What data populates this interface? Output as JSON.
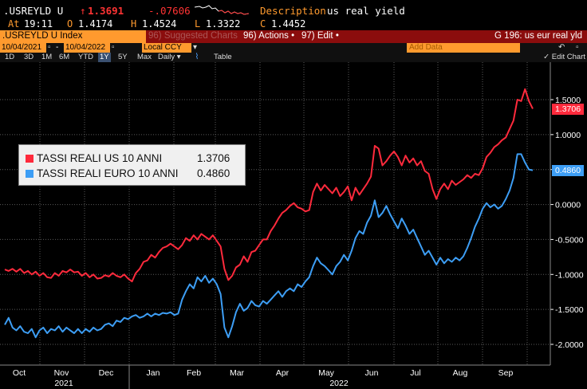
{
  "quote": {
    "ticker": ".USREYLD U",
    "arrow": "↑",
    "last": "1.3691",
    "change": "-.07606",
    "desc_label": "Description",
    "desc_value": "us real yield",
    "at_label": "At",
    "at_value": "19:11",
    "open_label": "O",
    "open_value": "1.4174",
    "high_label": "H",
    "high_value": "1.4524",
    "low_label": "L",
    "low_value": "1.3322",
    "close_label": "C",
    "close_value": "1.4452"
  },
  "titlebar": {
    "security": ".USREYLD U Index",
    "suggested": "96) Suggested Charts",
    "actions": "96) Actions •",
    "edit": "97) Edit •",
    "page_title": "G 196: us eur real yld"
  },
  "daterow": {
    "start_date": "10/04/2021",
    "end_date": "10/04/2022",
    "currency": "Local CCY",
    "add_data": "Add Data"
  },
  "range": {
    "buttons": [
      "1D",
      "3D",
      "1M",
      "6M",
      "YTD",
      "1Y",
      "5Y",
      "Max"
    ],
    "active": "1Y",
    "period": "Daily ▾",
    "table": "Table",
    "edit_chart": "✓ Edit Chart"
  },
  "colors": {
    "us_series": "#ff2a3c",
    "euro_series": "#3d9ef5",
    "title_bar": "#8b0d0d",
    "orange_box": "#ff9a2e"
  },
  "chart_data": {
    "type": "line",
    "x_months": [
      "Oct",
      "Nov",
      "Dec",
      "Jan",
      "Feb",
      "Mar",
      "Apr",
      "May",
      "Jun",
      "Jul",
      "Aug",
      "Sep"
    ],
    "x_years": [
      "2021",
      "2022"
    ],
    "y_ticks": [
      "1.5000",
      "1.0000",
      "0.5000",
      "0.0000",
      "-0.5000",
      "-1.0000",
      "-1.5000",
      "-2.0000"
    ],
    "ylim": [
      -2.2,
      1.95
    ],
    "grid": true,
    "legend_position": "top-left",
    "series": [
      {
        "name": "TASSI REALI US 10 ANNI",
        "last_value": "1.3706",
        "color": "#ff2a3c",
        "values": [
          [
            0,
            -0.93
          ],
          [
            2,
            -0.95
          ],
          [
            4,
            -0.92
          ],
          [
            6,
            -0.96
          ],
          [
            8,
            -0.92
          ],
          [
            10,
            -0.98
          ],
          [
            12,
            -0.95
          ],
          [
            14,
            -1.0
          ],
          [
            16,
            -0.96
          ],
          [
            18,
            -1.02
          ],
          [
            20,
            -0.98
          ],
          [
            22,
            -1.04
          ],
          [
            24,
            -1.05
          ],
          [
            26,
            -0.98
          ],
          [
            28,
            -1.02
          ],
          [
            30,
            -0.95
          ],
          [
            32,
            -0.97
          ],
          [
            34,
            -0.93
          ],
          [
            36,
            -0.97
          ],
          [
            38,
            -0.96
          ],
          [
            40,
            -1.02
          ],
          [
            42,
            -0.98
          ],
          [
            44,
            -1.04
          ],
          [
            46,
            -1.0
          ],
          [
            48,
            -1.06
          ],
          [
            50,
            -1.05
          ],
          [
            52,
            -1.01
          ],
          [
            54,
            -1.03
          ],
          [
            56,
            -0.98
          ],
          [
            58,
            -1.02
          ],
          [
            60,
            -1.04
          ],
          [
            62,
            -1.0
          ],
          [
            64,
            -1.06
          ],
          [
            66,
            -1.1
          ],
          [
            68,
            -0.98
          ],
          [
            70,
            -0.92
          ],
          [
            72,
            -0.82
          ],
          [
            74,
            -0.8
          ],
          [
            76,
            -0.72
          ],
          [
            78,
            -0.76
          ],
          [
            80,
            -0.68
          ],
          [
            82,
            -0.62
          ],
          [
            84,
            -0.6
          ],
          [
            86,
            -0.56
          ],
          [
            88,
            -0.6
          ],
          [
            90,
            -0.64
          ],
          [
            92,
            -0.58
          ],
          [
            94,
            -0.48
          ],
          [
            96,
            -0.52
          ],
          [
            98,
            -0.44
          ],
          [
            100,
            -0.5
          ],
          [
            102,
            -0.42
          ],
          [
            104,
            -0.46
          ],
          [
            106,
            -0.5
          ],
          [
            108,
            -0.44
          ],
          [
            110,
            -0.52
          ],
          [
            112,
            -0.6
          ],
          [
            114,
            -0.92
          ],
          [
            116,
            -1.08
          ],
          [
            118,
            -1.02
          ],
          [
            120,
            -0.9
          ],
          [
            122,
            -0.86
          ],
          [
            124,
            -0.74
          ],
          [
            126,
            -0.82
          ],
          [
            128,
            -0.68
          ],
          [
            130,
            -0.66
          ],
          [
            132,
            -0.58
          ],
          [
            134,
            -0.5
          ],
          [
            136,
            -0.5
          ],
          [
            138,
            -0.38
          ],
          [
            140,
            -0.3
          ],
          [
            142,
            -0.2
          ],
          [
            144,
            -0.12
          ],
          [
            146,
            -0.08
          ],
          [
            148,
            -0.02
          ],
          [
            150,
            0.02
          ],
          [
            152,
            -0.04
          ],
          [
            154,
            -0.06
          ],
          [
            156,
            -0.1
          ],
          [
            158,
            -0.08
          ],
          [
            160,
            0.18
          ],
          [
            162,
            0.3
          ],
          [
            164,
            0.2
          ],
          [
            166,
            0.28
          ],
          [
            168,
            0.22
          ],
          [
            170,
            0.16
          ],
          [
            172,
            0.24
          ],
          [
            174,
            0.12
          ],
          [
            176,
            0.18
          ],
          [
            178,
            0.26
          ],
          [
            180,
            0.06
          ],
          [
            182,
            0.24
          ],
          [
            184,
            0.14
          ],
          [
            186,
            0.22
          ],
          [
            188,
            0.3
          ],
          [
            190,
            0.4
          ],
          [
            192,
            0.84
          ],
          [
            194,
            0.8
          ],
          [
            196,
            0.56
          ],
          [
            198,
            0.62
          ],
          [
            200,
            0.7
          ],
          [
            202,
            0.76
          ],
          [
            204,
            0.68
          ],
          [
            206,
            0.56
          ],
          [
            208,
            0.7
          ],
          [
            210,
            0.6
          ],
          [
            212,
            0.66
          ],
          [
            214,
            0.56
          ],
          [
            216,
            0.62
          ],
          [
            218,
            0.48
          ],
          [
            220,
            0.44
          ],
          [
            222,
            0.22
          ],
          [
            224,
            0.08
          ],
          [
            226,
            0.22
          ],
          [
            228,
            0.3
          ],
          [
            230,
            0.22
          ],
          [
            232,
            0.34
          ],
          [
            234,
            0.28
          ],
          [
            236,
            0.32
          ],
          [
            238,
            0.36
          ],
          [
            240,
            0.42
          ],
          [
            242,
            0.38
          ],
          [
            244,
            0.44
          ],
          [
            246,
            0.42
          ],
          [
            248,
            0.52
          ],
          [
            250,
            0.68
          ],
          [
            252,
            0.74
          ],
          [
            254,
            0.82
          ],
          [
            256,
            0.86
          ],
          [
            258,
            0.92
          ],
          [
            260,
            0.96
          ],
          [
            262,
            1.08
          ],
          [
            264,
            1.2
          ],
          [
            266,
            1.5
          ],
          [
            268,
            1.48
          ],
          [
            270,
            1.65
          ],
          [
            272,
            1.48
          ],
          [
            274,
            1.37
          ]
        ]
      },
      {
        "name": "TASSI REALI EURO 10 ANNI",
        "last_value": "0.4860",
        "color": "#3d9ef5",
        "values": [
          [
            0,
            -1.72
          ],
          [
            2,
            -1.62
          ],
          [
            4,
            -1.76
          ],
          [
            6,
            -1.8
          ],
          [
            8,
            -1.74
          ],
          [
            10,
            -1.82
          ],
          [
            12,
            -1.84
          ],
          [
            14,
            -1.78
          ],
          [
            16,
            -1.9
          ],
          [
            18,
            -1.8
          ],
          [
            20,
            -1.76
          ],
          [
            22,
            -1.84
          ],
          [
            24,
            -1.78
          ],
          [
            26,
            -1.8
          ],
          [
            28,
            -1.74
          ],
          [
            30,
            -1.82
          ],
          [
            32,
            -1.76
          ],
          [
            34,
            -1.8
          ],
          [
            36,
            -1.84
          ],
          [
            38,
            -1.78
          ],
          [
            40,
            -1.84
          ],
          [
            42,
            -1.78
          ],
          [
            44,
            -1.82
          ],
          [
            46,
            -1.76
          ],
          [
            48,
            -1.8
          ],
          [
            50,
            -1.78
          ],
          [
            52,
            -1.72
          ],
          [
            54,
            -1.7
          ],
          [
            56,
            -1.74
          ],
          [
            58,
            -1.66
          ],
          [
            60,
            -1.68
          ],
          [
            62,
            -1.62
          ],
          [
            64,
            -1.64
          ],
          [
            66,
            -1.6
          ],
          [
            68,
            -1.58
          ],
          [
            70,
            -1.62
          ],
          [
            72,
            -1.6
          ],
          [
            74,
            -1.56
          ],
          [
            76,
            -1.6
          ],
          [
            78,
            -1.56
          ],
          [
            80,
            -1.58
          ],
          [
            82,
            -1.55
          ],
          [
            84,
            -1.56
          ],
          [
            86,
            -1.54
          ],
          [
            88,
            -1.58
          ],
          [
            90,
            -1.56
          ],
          [
            92,
            -1.36
          ],
          [
            94,
            -1.24
          ],
          [
            96,
            -1.14
          ],
          [
            98,
            -1.2
          ],
          [
            100,
            -1.04
          ],
          [
            102,
            -1.1
          ],
          [
            104,
            -1.02
          ],
          [
            106,
            -1.12
          ],
          [
            108,
            -1.06
          ],
          [
            110,
            -1.14
          ],
          [
            112,
            -1.28
          ],
          [
            114,
            -1.76
          ],
          [
            116,
            -1.9
          ],
          [
            118,
            -1.74
          ],
          [
            120,
            -1.54
          ],
          [
            122,
            -1.42
          ],
          [
            124,
            -1.52
          ],
          [
            126,
            -1.48
          ],
          [
            128,
            -1.38
          ],
          [
            130,
            -1.44
          ],
          [
            132,
            -1.46
          ],
          [
            134,
            -1.38
          ],
          [
            136,
            -1.42
          ],
          [
            138,
            -1.36
          ],
          [
            140,
            -1.3
          ],
          [
            142,
            -1.24
          ],
          [
            144,
            -1.32
          ],
          [
            146,
            -1.24
          ],
          [
            148,
            -1.2
          ],
          [
            150,
            -1.24
          ],
          [
            152,
            -1.14
          ],
          [
            154,
            -1.18
          ],
          [
            156,
            -1.1
          ],
          [
            158,
            -1.04
          ],
          [
            160,
            -0.88
          ],
          [
            162,
            -0.76
          ],
          [
            164,
            -0.84
          ],
          [
            166,
            -0.88
          ],
          [
            168,
            -0.94
          ],
          [
            170,
            -1.0
          ],
          [
            172,
            -0.88
          ],
          [
            174,
            -0.82
          ],
          [
            176,
            -0.72
          ],
          [
            178,
            -0.8
          ],
          [
            180,
            -0.66
          ],
          [
            182,
            -0.48
          ],
          [
            184,
            -0.38
          ],
          [
            186,
            -0.42
          ],
          [
            188,
            -0.26
          ],
          [
            190,
            -0.16
          ],
          [
            192,
            0.06
          ],
          [
            194,
            -0.18
          ],
          [
            196,
            -0.12
          ],
          [
            198,
            -0.02
          ],
          [
            200,
            -0.14
          ],
          [
            202,
            -0.24
          ],
          [
            204,
            -0.34
          ],
          [
            206,
            -0.2
          ],
          [
            208,
            -0.3
          ],
          [
            210,
            -0.42
          ],
          [
            212,
            -0.36
          ],
          [
            214,
            -0.48
          ],
          [
            216,
            -0.6
          ],
          [
            218,
            -0.72
          ],
          [
            220,
            -0.66
          ],
          [
            222,
            -0.76
          ],
          [
            224,
            -0.86
          ],
          [
            226,
            -0.76
          ],
          [
            228,
            -0.84
          ],
          [
            230,
            -0.78
          ],
          [
            232,
            -0.82
          ],
          [
            234,
            -0.76
          ],
          [
            236,
            -0.8
          ],
          [
            238,
            -0.74
          ],
          [
            240,
            -0.62
          ],
          [
            242,
            -0.48
          ],
          [
            244,
            -0.32
          ],
          [
            246,
            -0.2
          ],
          [
            248,
            -0.06
          ],
          [
            250,
            0.02
          ],
          [
            252,
            -0.04
          ],
          [
            254,
            0.0
          ],
          [
            256,
            -0.06
          ],
          [
            258,
            -0.02
          ],
          [
            260,
            0.08
          ],
          [
            262,
            0.2
          ],
          [
            264,
            0.38
          ],
          [
            266,
            0.72
          ],
          [
            268,
            0.72
          ],
          [
            270,
            0.6
          ],
          [
            272,
            0.5
          ],
          [
            274,
            0.49
          ]
        ]
      }
    ]
  }
}
